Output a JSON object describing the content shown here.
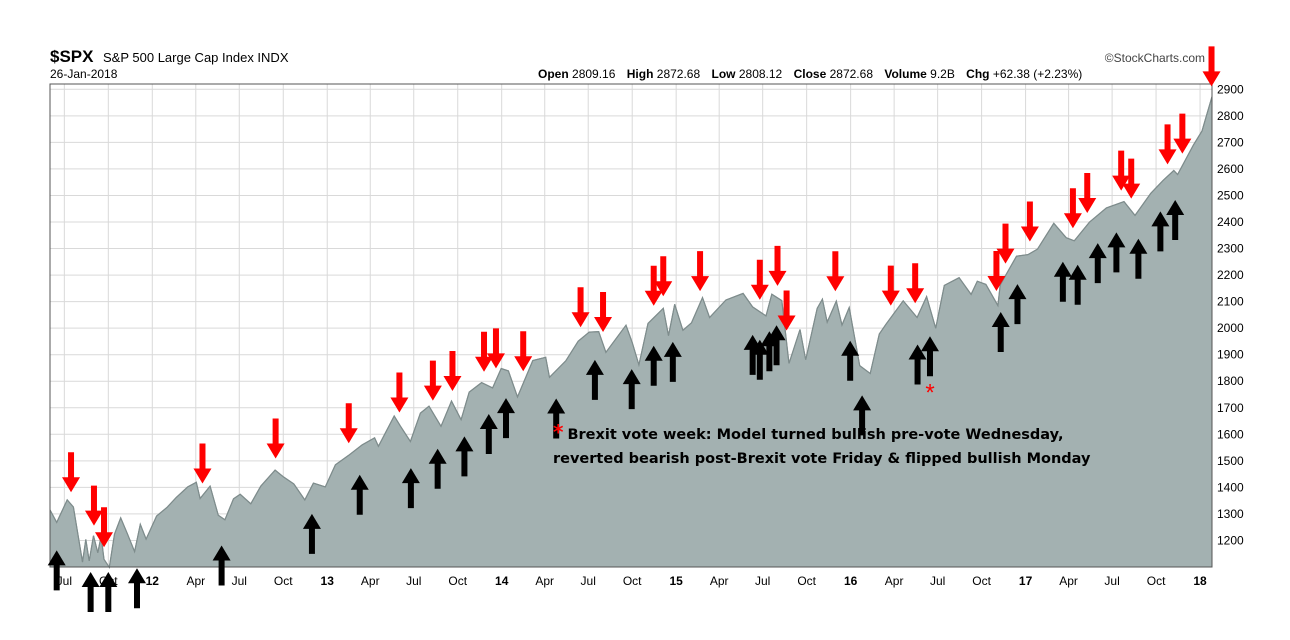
{
  "header": {
    "ticker": "$SPX",
    "name": "S&P 500 Large Cap Index INDX",
    "date": "26-Jan-2018",
    "source": "©StockCharts.com",
    "open_label": "Open",
    "open": "2809.16",
    "high_label": "High",
    "high": "2872.68",
    "low_label": "Low",
    "low": "2808.12",
    "close_label": "Close",
    "close": "2872.68",
    "volume_label": "Volume",
    "volume": "9.2B",
    "chg_label": "Chg",
    "chg": "+62.38 (+2.23%)"
  },
  "annotation": {
    "star": "*",
    "line1": "Brexit vote week: Model turned bullish pre-vote Wednesday,",
    "line2": "reverted bearish post-Brexit vote Friday & flipped bullish Monday"
  },
  "colors": {
    "area_fill": "#a3b1b1",
    "area_line": "#7e8c8c",
    "grid": "#d9d9d9",
    "sell_arrow": "#ff0000",
    "buy_arrow": "#000000"
  },
  "chart_data": {
    "type": "area",
    "title": "$SPX S&P 500 Large Cap Index INDX",
    "y_axis_side": "right",
    "ylim": [
      1100,
      2920
    ],
    "y_ticks": [
      1200,
      1300,
      1400,
      1500,
      1600,
      1700,
      1800,
      1900,
      2000,
      2100,
      2200,
      2300,
      2400,
      2500,
      2600,
      2700,
      2800,
      2900
    ],
    "x_range": [
      "2011-06-01",
      "2018-01-26"
    ],
    "x_ticks": [
      {
        "label": "Jul",
        "date": "2011-07-01",
        "bold": false
      },
      {
        "label": "Oct",
        "date": "2011-10-01",
        "bold": false
      },
      {
        "label": "12",
        "date": "2012-01-01",
        "bold": true
      },
      {
        "label": "Apr",
        "date": "2012-04-01",
        "bold": false
      },
      {
        "label": "Jul",
        "date": "2012-07-01",
        "bold": false
      },
      {
        "label": "Oct",
        "date": "2012-10-01",
        "bold": false
      },
      {
        "label": "13",
        "date": "2013-01-01",
        "bold": true
      },
      {
        "label": "Apr",
        "date": "2013-04-01",
        "bold": false
      },
      {
        "label": "Jul",
        "date": "2013-07-01",
        "bold": false
      },
      {
        "label": "Oct",
        "date": "2013-10-01",
        "bold": false
      },
      {
        "label": "14",
        "date": "2014-01-01",
        "bold": true
      },
      {
        "label": "Apr",
        "date": "2014-04-01",
        "bold": false
      },
      {
        "label": "Jul",
        "date": "2014-07-01",
        "bold": false
      },
      {
        "label": "Oct",
        "date": "2014-10-01",
        "bold": false
      },
      {
        "label": "15",
        "date": "2015-01-01",
        "bold": true
      },
      {
        "label": "Apr",
        "date": "2015-04-01",
        "bold": false
      },
      {
        "label": "Jul",
        "date": "2015-07-01",
        "bold": false
      },
      {
        "label": "Oct",
        "date": "2015-10-01",
        "bold": false
      },
      {
        "label": "16",
        "date": "2016-01-01",
        "bold": true
      },
      {
        "label": "Apr",
        "date": "2016-04-01",
        "bold": false
      },
      {
        "label": "Jul",
        "date": "2016-07-01",
        "bold": false
      },
      {
        "label": "Oct",
        "date": "2016-10-01",
        "bold": false
      },
      {
        "label": "17",
        "date": "2017-01-01",
        "bold": true
      },
      {
        "label": "Apr",
        "date": "2017-04-01",
        "bold": false
      },
      {
        "label": "Jul",
        "date": "2017-07-01",
        "bold": false
      },
      {
        "label": "Oct",
        "date": "2017-10-01",
        "bold": false
      },
      {
        "label": "18",
        "date": "2018-01-01",
        "bold": true
      }
    ],
    "series": [
      {
        "x": [
          "2011-06-01",
          "2011-06-15",
          "2011-07-07",
          "2011-07-20",
          "2011-08-08",
          "2011-08-15",
          "2011-08-22",
          "2011-08-31",
          "2011-09-09",
          "2011-09-16",
          "2011-09-22",
          "2011-10-03",
          "2011-10-14",
          "2011-10-27",
          "2011-11-09",
          "2011-11-25",
          "2011-12-07",
          "2011-12-19",
          "2012-01-10",
          "2012-02-01",
          "2012-02-20",
          "2012-03-15",
          "2012-04-02",
          "2012-04-10",
          "2012-05-01",
          "2012-05-18",
          "2012-06-01",
          "2012-06-19",
          "2012-07-03",
          "2012-07-25",
          "2012-08-15",
          "2012-09-14",
          "2012-10-01",
          "2012-10-23",
          "2012-11-15",
          "2012-12-03",
          "2012-12-28",
          "2013-01-18",
          "2013-02-15",
          "2013-03-15",
          "2013-04-10",
          "2013-04-18",
          "2013-05-21",
          "2013-06-03",
          "2013-06-24",
          "2013-07-15",
          "2013-08-02",
          "2013-08-27",
          "2013-09-18",
          "2013-10-08",
          "2013-10-25",
          "2013-11-20",
          "2013-12-13",
          "2013-12-31",
          "2014-01-15",
          "2014-02-03",
          "2014-03-07",
          "2014-04-03",
          "2014-04-11",
          "2014-05-15",
          "2014-06-10",
          "2014-07-03",
          "2014-07-23",
          "2014-08-07",
          "2014-09-18",
          "2014-10-01",
          "2014-10-15",
          "2014-11-03",
          "2014-12-05",
          "2014-12-16",
          "2014-12-29",
          "2015-01-15",
          "2015-02-02",
          "2015-02-25",
          "2015-03-12",
          "2015-04-15",
          "2015-05-21",
          "2015-06-10",
          "2015-07-08",
          "2015-07-20",
          "2015-08-10",
          "2015-08-25",
          "2015-09-17",
          "2015-09-29",
          "2015-10-23",
          "2015-11-03",
          "2015-11-13",
          "2015-12-02",
          "2015-12-14",
          "2015-12-29",
          "2016-01-20",
          "2016-02-11",
          "2016-03-01",
          "2016-03-15",
          "2016-04-20",
          "2016-05-19",
          "2016-06-08",
          "2016-06-27",
          "2016-07-15",
          "2016-08-15",
          "2016-09-09",
          "2016-09-22",
          "2016-10-10",
          "2016-11-04",
          "2016-11-09",
          "2016-12-13",
          "2017-01-06",
          "2017-01-26",
          "2017-03-01",
          "2017-03-27",
          "2017-04-13",
          "2017-05-15",
          "2017-06-19",
          "2017-07-26",
          "2017-08-18",
          "2017-09-20",
          "2017-10-16",
          "2017-11-07",
          "2017-11-15",
          "2017-12-18",
          "2018-01-05",
          "2018-01-12",
          "2018-01-26"
        ],
        "y": [
          1315,
          1268,
          1353,
          1326,
          1119,
          1204,
          1123,
          1218,
          1154,
          1216,
          1129,
          1099,
          1224,
          1285,
          1229,
          1158,
          1261,
          1205,
          1292,
          1325,
          1362,
          1402,
          1419,
          1358,
          1405,
          1295,
          1278,
          1357,
          1374,
          1338,
          1405,
          1465,
          1440,
          1413,
          1353,
          1416,
          1402,
          1485,
          1521,
          1560,
          1587,
          1555,
          1669,
          1631,
          1573,
          1680,
          1706,
          1630,
          1725,
          1655,
          1759,
          1795,
          1775,
          1848,
          1839,
          1741,
          1878,
          1890,
          1815,
          1877,
          1951,
          1985,
          1987,
          1909,
          2011,
          1946,
          1862,
          2018,
          2075,
          1972,
          2090,
          1992,
          2020,
          2115,
          2040,
          2106,
          2131,
          2080,
          2046,
          2128,
          2104,
          1867,
          1995,
          1881,
          2075,
          2109,
          2023,
          2102,
          2012,
          2078,
          1859,
          1829,
          1978,
          2015,
          2103,
          2040,
          2119,
          2000,
          2161,
          2190,
          2127,
          2177,
          2165,
          2085,
          2163,
          2271,
          2277,
          2298,
          2395,
          2341,
          2329,
          2400,
          2453,
          2477,
          2425,
          2508,
          2557,
          2594,
          2579,
          2690,
          2743,
          2786,
          2872
        ]
      }
    ],
    "sell_signals_red_arrows": [
      "2011-07-15",
      "2011-09-01",
      "2011-09-22",
      "2012-04-15",
      "2012-09-15",
      "2013-02-15",
      "2013-06-01",
      "2013-08-10",
      "2013-09-20",
      "2013-11-25",
      "2013-12-20",
      "2014-02-15",
      "2014-06-15",
      "2014-08-01",
      "2014-11-15",
      "2014-12-05",
      "2015-02-20",
      "2015-06-25",
      "2015-08-01",
      "2015-08-20",
      "2015-11-30",
      "2016-03-25",
      "2016-05-15",
      "2016-11-01",
      "2016-11-20",
      "2017-01-10",
      "2017-04-10",
      "2017-05-10",
      "2017-07-20",
      "2017-08-10",
      "2017-10-25",
      "2017-11-25",
      "2018-01-25"
    ],
    "buy_signals_black_arrows": [
      "2011-06-15",
      "2011-08-25",
      "2011-10-01",
      "2011-11-30",
      "2012-05-25",
      "2012-11-30",
      "2013-03-10",
      "2013-06-25",
      "2013-08-20",
      "2013-10-15",
      "2013-12-05",
      "2014-01-10",
      "2014-04-25",
      "2014-07-15",
      "2014-09-30",
      "2014-11-15",
      "2014-12-25",
      "2015-06-10",
      "2015-06-25",
      "2015-07-15",
      "2015-07-30",
      "2015-12-31",
      "2016-01-25",
      "2016-05-20",
      "2016-06-15",
      "2016-11-10",
      "2016-12-15",
      "2017-03-20",
      "2017-04-20",
      "2017-06-01",
      "2017-07-10",
      "2017-08-25",
      "2017-10-10",
      "2017-11-10"
    ],
    "special_marker": {
      "label": "*",
      "date": "2016-06-15",
      "y": 1780
    }
  }
}
